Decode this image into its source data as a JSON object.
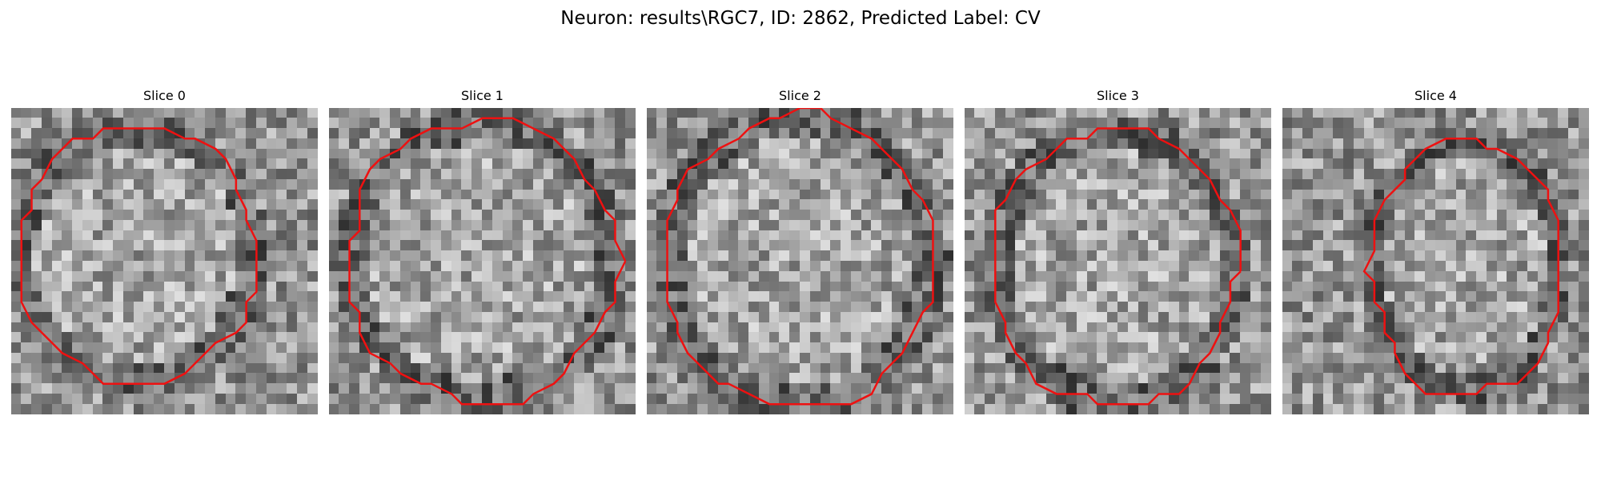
{
  "figure": {
    "title": "Neuron: results\\RGC7, ID: 2862, Predicted Label: CV",
    "panel_bg": "#ffffff",
    "contour_color": "#ee1111"
  },
  "panels": [
    {
      "title": "Slice 0",
      "seed": 11
    },
    {
      "title": "Slice 1",
      "seed": 23
    },
    {
      "title": "Slice 2",
      "seed": 37
    },
    {
      "title": "Slice 3",
      "seed": 41
    },
    {
      "title": "Slice 4",
      "seed": 59
    }
  ]
}
